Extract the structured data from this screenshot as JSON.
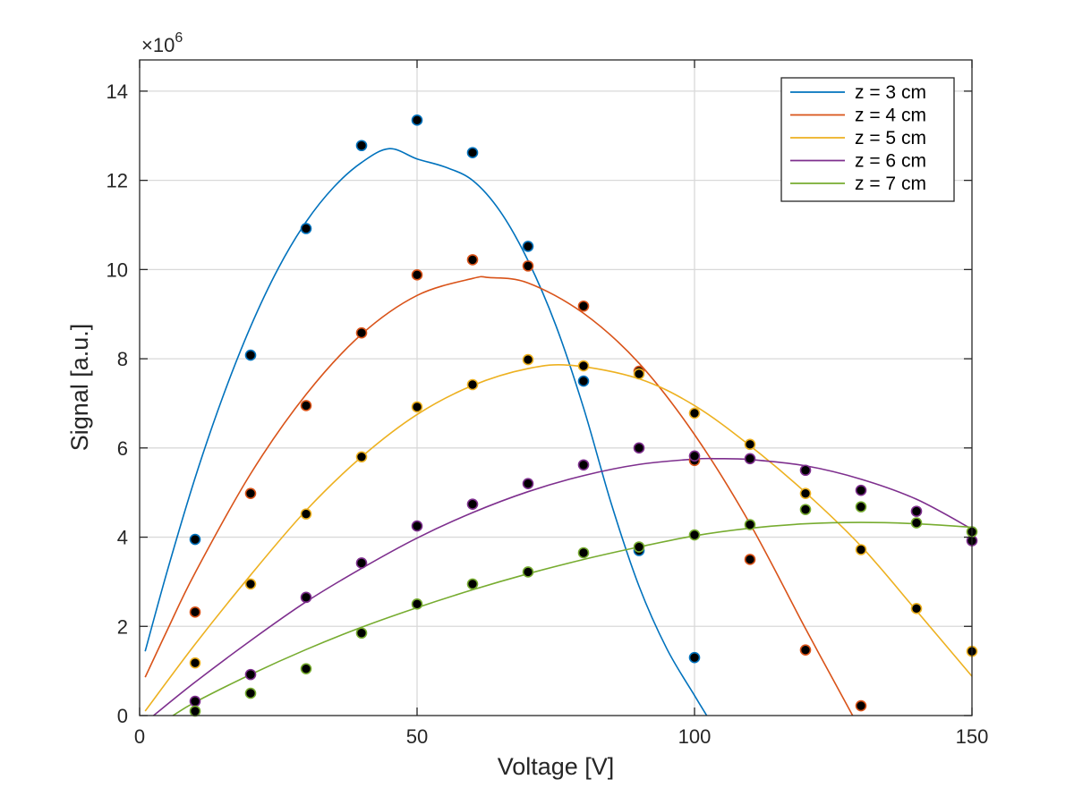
{
  "chart_data": {
    "type": "scatter",
    "xlabel": "Voltage [V]",
    "ylabel": "Signal [a.u.]",
    "xlim": [
      0,
      150
    ],
    "ylim": [
      0,
      14.7
    ],
    "y_multiplier": "×10",
    "y_multiplier_exp": "6",
    "xticks": [
      "0",
      "50",
      "100",
      "150"
    ],
    "yticks": [
      "0",
      "2",
      "4",
      "6",
      "8",
      "10",
      "12",
      "14"
    ],
    "grid": true,
    "legend_position": "top-right",
    "series": [
      {
        "name": "z = 3 cm",
        "color": "#0072BD",
        "fit_x": [
          1.0,
          5.0,
          10.0,
          15.0,
          20.0,
          25.0,
          30.0,
          35.0,
          40.0,
          45.0,
          50.0,
          55.0,
          60.0,
          65.0,
          70.0,
          75.0,
          80.0,
          85.0,
          90.0,
          95.0,
          100.0,
          102.2
        ],
        "fit_y": [
          1.44,
          3.25,
          5.33,
          7.15,
          8.72,
          10.03,
          11.07,
          11.85,
          12.4,
          12.71,
          12.48,
          12.3,
          12.0,
          11.3,
          10.2,
          8.75,
          6.9,
          4.75,
          2.9,
          1.5,
          0.45,
          0.0
        ],
        "points_x": [
          10,
          20,
          30,
          40,
          50,
          60,
          70,
          80,
          90,
          100
        ],
        "points_y": [
          3.95,
          8.08,
          10.92,
          12.78,
          13.35,
          12.62,
          10.52,
          7.5,
          3.7,
          1.3
        ]
      },
      {
        "name": "z = 4 cm",
        "color": "#D95319",
        "fit_x": [
          1.0,
          5.0,
          10.0,
          20.0,
          30.0,
          40.0,
          50.0,
          60.0,
          63.0,
          70.0,
          80.0,
          90.0,
          100.0,
          110.0,
          120.0,
          128.5
        ],
        "fit_y": [
          0.86,
          1.92,
          3.2,
          5.42,
          7.2,
          8.55,
          9.42,
          9.8,
          9.82,
          9.7,
          9.02,
          7.9,
          6.3,
          4.3,
          1.95,
          0.0
        ],
        "points_x": [
          10,
          20,
          30,
          40,
          50,
          60,
          70,
          80,
          90,
          100,
          110,
          120,
          130
        ],
        "points_y": [
          2.32,
          4.98,
          6.95,
          8.58,
          9.88,
          10.22,
          10.08,
          9.18,
          7.72,
          5.72,
          3.5,
          1.47,
          0.22
        ]
      },
      {
        "name": "z = 5 cm",
        "color": "#EDB120",
        "fit_x": [
          1.0,
          10.0,
          20.0,
          30.0,
          40.0,
          50.0,
          60.0,
          70.0,
          78.0,
          90.0,
          100.0,
          110.0,
          120.0,
          130.0,
          140.0,
          150.0
        ],
        "fit_y": [
          0.1,
          1.6,
          3.15,
          4.6,
          5.8,
          6.75,
          7.4,
          7.78,
          7.85,
          7.55,
          6.95,
          6.05,
          5.0,
          3.8,
          2.35,
          0.88
        ],
        "points_x": [
          10,
          20,
          30,
          40,
          50,
          60,
          70,
          80,
          90,
          100,
          110,
          120,
          130,
          140,
          150
        ],
        "points_y": [
          1.18,
          2.95,
          4.52,
          5.8,
          6.92,
          7.42,
          7.98,
          7.84,
          7.66,
          6.78,
          6.08,
          4.98,
          3.72,
          2.4,
          1.44
        ]
      },
      {
        "name": "z = 6 cm",
        "color": "#7E2F8E",
        "fit_x": [
          2.5,
          10.0,
          20.0,
          30.0,
          40.0,
          50.0,
          60.0,
          70.0,
          80.0,
          90.0,
          100.0,
          104.0,
          110.0,
          120.0,
          130.0,
          140.0,
          150.0
        ],
        "fit_y": [
          0.0,
          0.75,
          1.68,
          2.55,
          3.3,
          3.98,
          4.55,
          5.02,
          5.38,
          5.63,
          5.75,
          5.76,
          5.74,
          5.6,
          5.3,
          4.85,
          4.18
        ],
        "points_x": [
          10,
          20,
          30,
          40,
          50,
          60,
          70,
          80,
          90,
          100,
          110,
          120,
          130,
          140,
          150
        ],
        "points_y": [
          0.32,
          0.92,
          2.65,
          3.42,
          4.25,
          4.74,
          5.2,
          5.62,
          6.0,
          5.82,
          5.76,
          5.5,
          5.05,
          4.58,
          3.92
        ]
      },
      {
        "name": "z = 7 cm",
        "color": "#77AC30",
        "fit_x": [
          6.0,
          10.0,
          20.0,
          30.0,
          40.0,
          50.0,
          60.0,
          70.0,
          80.0,
          90.0,
          100.0,
          110.0,
          120.0,
          130.0,
          140.0,
          150.0
        ],
        "fit_y": [
          0.0,
          0.3,
          0.92,
          1.48,
          1.98,
          2.42,
          2.82,
          3.18,
          3.5,
          3.78,
          4.03,
          4.2,
          4.3,
          4.33,
          4.3,
          4.22
        ],
        "points_x": [
          10,
          20,
          30,
          40,
          50,
          60,
          70,
          80,
          90,
          100,
          110,
          120,
          130,
          140,
          150
        ],
        "points_y": [
          0.1,
          0.5,
          1.05,
          1.85,
          2.5,
          2.95,
          3.22,
          3.65,
          3.78,
          4.05,
          4.28,
          4.62,
          4.68,
          4.32,
          4.12
        ]
      }
    ]
  }
}
